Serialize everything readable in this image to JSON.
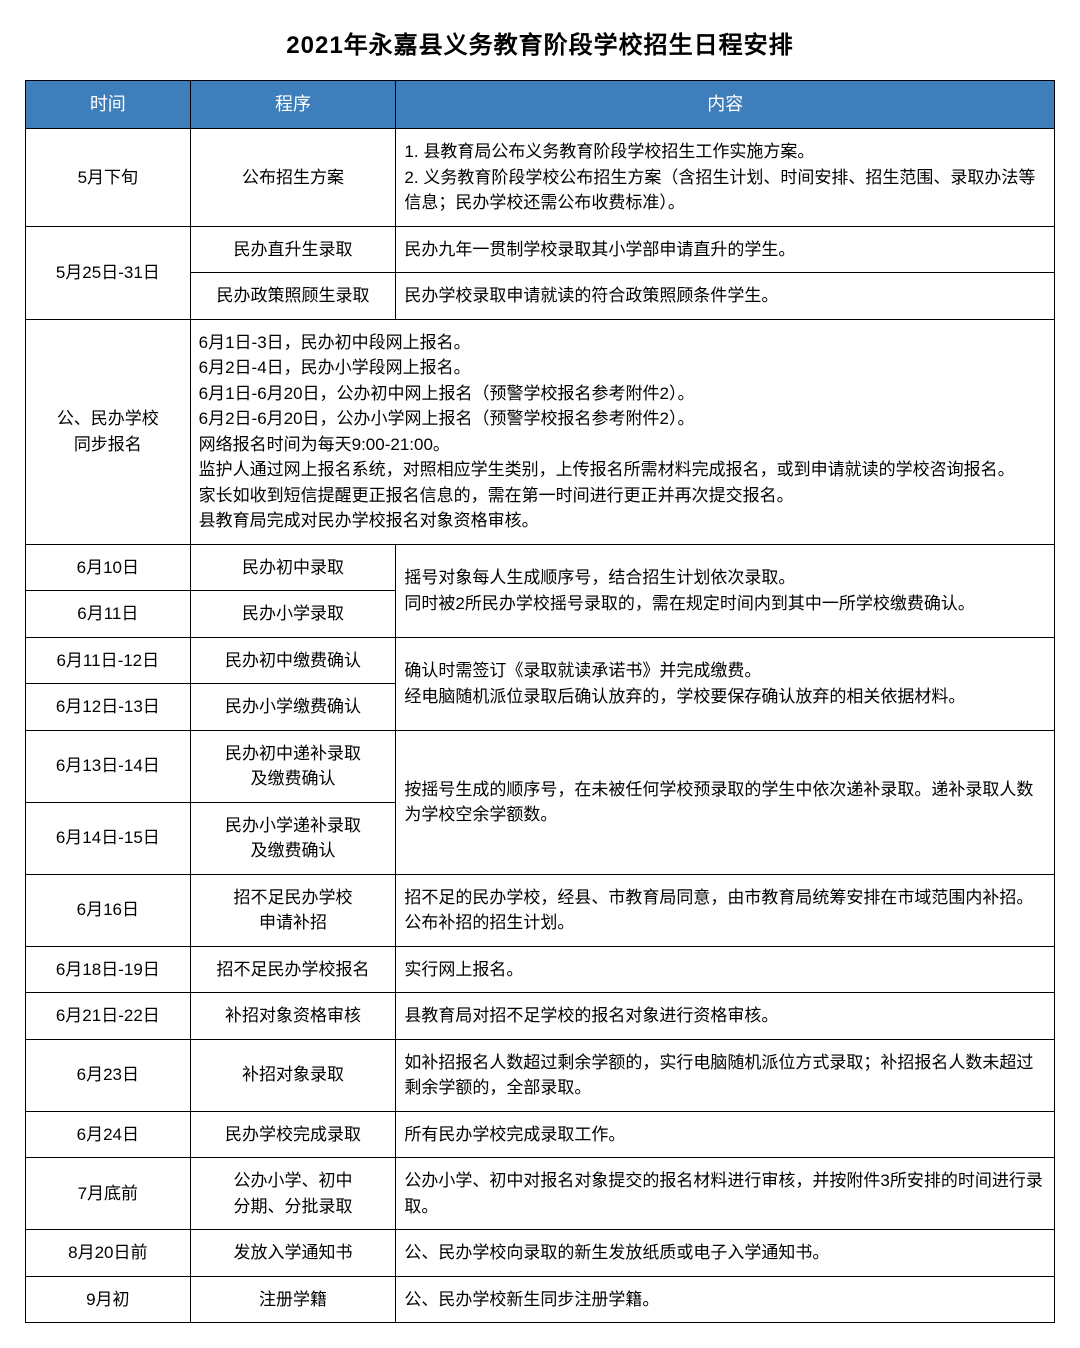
{
  "title": "2021年永嘉县义务教育阶段学校招生日程安排",
  "headers": {
    "time": "时间",
    "proc": "程序",
    "content": "内容"
  },
  "colors": {
    "header_bg": "#3d7ebb",
    "header_text": "#ffffff",
    "border": "#000000",
    "background": "#ffffff"
  },
  "rows": {
    "r1": {
      "time": "5月下旬",
      "proc": "公布招生方案",
      "content": "1. 县教育局公布义务教育阶段学校招生工作实施方案。\n2. 义务教育阶段学校公布招生方案（含招生计划、时间安排、招生范围、录取办法等信息；民办学校还需公布收费标准）。"
    },
    "r2": {
      "time": "5月25日-31日",
      "proc_a": "民办直升生录取",
      "content_a": "民办九年一贯制学校录取其小学部申请直升的学生。",
      "proc_b": "民办政策照顾生录取",
      "content_b": "民办学校录取申请就读的符合政策照顾条件学生。"
    },
    "r3": {
      "time": "公、民办学校\n同步报名",
      "content": "6月1日-3日，民办初中段网上报名。\n6月2日-4日，民办小学段网上报名。\n6月1日-6月20日，公办初中网上报名（预警学校报名参考附件2）。\n6月2日-6月20日，公办小学网上报名（预警学校报名参考附件2）。\n网络报名时间为每天9:00-21:00。\n监护人通过网上报名系统，对照相应学生类别，上传报名所需材料完成报名，或到申请就读的学校咨询报名。\n家长如收到短信提醒更正报名信息的，需在第一时间进行更正并再次提交报名。\n县教育局完成对民办学校报名对象资格审核。"
    },
    "r4": {
      "time_a": "6月10日",
      "proc_a": "民办初中录取",
      "time_b": "6月11日",
      "proc_b": "民办小学录取",
      "content": "摇号对象每人生成顺序号，结合招生计划依次录取。\n同时被2所民办学校摇号录取的，需在规定时间内到其中一所学校缴费确认。"
    },
    "r5": {
      "time_a": "6月11日-12日",
      "proc_a": "民办初中缴费确认",
      "time_b": "6月12日-13日",
      "proc_b": "民办小学缴费确认",
      "content": "确认时需签订《录取就读承诺书》并完成缴费。\n经电脑随机派位录取后确认放弃的，学校要保存确认放弃的相关依据材料。"
    },
    "r6": {
      "time_a": "6月13日-14日",
      "proc_a": "民办初中递补录取\n及缴费确认",
      "time_b": "6月14日-15日",
      "proc_b": "民办小学递补录取\n及缴费确认",
      "content": "按摇号生成的顺序号，在未被任何学校预录取的学生中依次递补录取。递补录取人数为学校空余学额数。"
    },
    "r7": {
      "time": "6月16日",
      "proc": "招不足民办学校\n申请补招",
      "content": "招不足的民办学校，经县、市教育局同意，由市教育局统筹安排在市域范围内补招。公布补招的招生计划。"
    },
    "r8": {
      "time": "6月18日-19日",
      "proc": "招不足民办学校报名",
      "content": "实行网上报名。"
    },
    "r9": {
      "time": "6月21日-22日",
      "proc": "补招对象资格审核",
      "content": "县教育局对招不足学校的报名对象进行资格审核。"
    },
    "r10": {
      "time": "6月23日",
      "proc": "补招对象录取",
      "content": "如补招报名人数超过剩余学额的，实行电脑随机派位方式录取；补招报名人数未超过剩余学额的，全部录取。"
    },
    "r11": {
      "time": "6月24日",
      "proc": "民办学校完成录取",
      "content": "所有民办学校完成录取工作。"
    },
    "r12": {
      "time": "7月底前",
      "proc": "公办小学、初中\n分期、分批录取",
      "content": "公办小学、初中对报名对象提交的报名材料进行审核，并按附件3所安排的时间进行录取。"
    },
    "r13": {
      "time": "8月20日前",
      "proc": "发放入学通知书",
      "content": "公、民办学校向录取的新生发放纸质或电子入学通知书。"
    },
    "r14": {
      "time": "9月初",
      "proc": "注册学籍",
      "content": "公、民办学校新生同步注册学籍。"
    }
  }
}
